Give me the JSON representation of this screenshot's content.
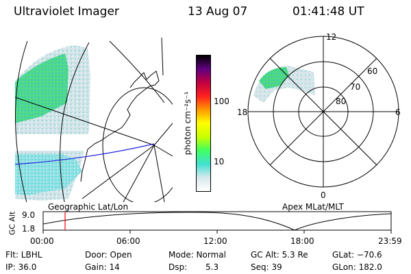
{
  "header": {
    "instrument": "Ultraviolet Imager",
    "date": "13 Aug 07",
    "time": "01:41:48 UT"
  },
  "geo_panel": {
    "label": "Geographic Lat/Lon"
  },
  "colorbar": {
    "unit_label": "photon cm⁻²s⁻¹",
    "tick_100": "100",
    "tick_10": "10",
    "scale": "log",
    "colors": [
      "#ffffff",
      "#d8e8ec",
      "#40e0d0",
      "#40ff60",
      "#c8ff00",
      "#ffff00",
      "#ff9900",
      "#ff2020",
      "#c00040",
      "#600080",
      "#000000"
    ]
  },
  "polar_panel": {
    "label": "Apex MLat/MLT",
    "mlt_top": "12",
    "mlt_left": "18",
    "mlt_right": "6",
    "mlt_bottom": "0",
    "lat_60": "60",
    "lat_70": "70",
    "lat_80": "80"
  },
  "altitude_plot": {
    "ylabel": "GC Alt",
    "ytick_high": "9.0",
    "ytick_low": "1.8",
    "xticks": [
      "00:00",
      "06:00",
      "12:00",
      "18:00",
      "23:59"
    ],
    "line_color": "#ff0000"
  },
  "footer": {
    "flt": "Flt: LBHL",
    "ip": "IP: 36.0",
    "door": "Door: Open",
    "gain": "Gain: 14",
    "mode": "Mode: Normal",
    "dsp_label": "Dsp:",
    "dsp_value": "5.3",
    "gcalt": "GC Alt: 5.3 Re",
    "seq": "Seq: 39",
    "glat": "GLat: −70.6",
    "glon": "GLon: 182.0"
  }
}
